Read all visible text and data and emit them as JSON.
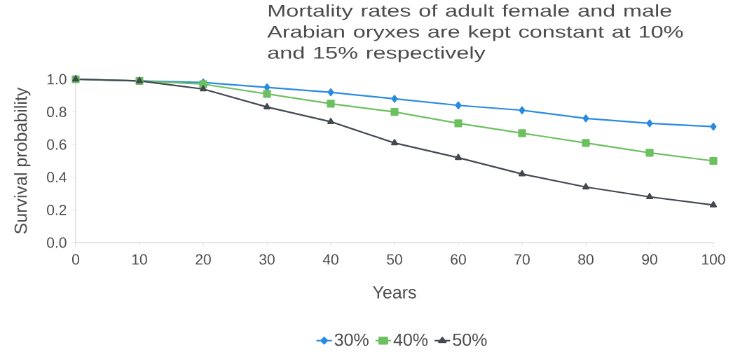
{
  "chart_data": {
    "type": "line",
    "title": "Mortality rates of adult female and male Arabian oryxes are kept constant at 10% and 15% respectively",
    "xlabel": "Years",
    "ylabel": "Survival probability",
    "x": [
      0,
      10,
      20,
      30,
      40,
      50,
      60,
      70,
      80,
      90,
      100
    ],
    "series": [
      {
        "name": "30%",
        "color": "#2a8ae0",
        "marker": "diamond",
        "values": [
          1.0,
          0.99,
          0.98,
          0.95,
          0.92,
          0.88,
          0.84,
          0.81,
          0.76,
          0.73,
          0.71
        ]
      },
      {
        "name": "40%",
        "color": "#6cc060",
        "marker": "square",
        "values": [
          1.0,
          0.99,
          0.97,
          0.91,
          0.85,
          0.8,
          0.73,
          0.67,
          0.61,
          0.55,
          0.5
        ]
      },
      {
        "name": "50%",
        "color": "#434851",
        "marker": "triangle",
        "values": [
          1.0,
          0.99,
          0.94,
          0.83,
          0.74,
          0.61,
          0.52,
          0.42,
          0.34,
          0.28,
          0.23
        ]
      }
    ],
    "xlim": [
      0,
      100
    ],
    "xticks": [
      0,
      10,
      20,
      30,
      40,
      50,
      60,
      70,
      80,
      90,
      100
    ],
    "ylim": [
      0,
      1.0
    ],
    "yticks": [
      {
        "value": 0,
        "label": "0.0"
      },
      {
        "value": 0.2,
        "label": "0.2"
      },
      {
        "value": 0.4,
        "label": "0.4"
      },
      {
        "value": 0.6,
        "label": "0.6"
      },
      {
        "value": 0.8,
        "label": "0.8"
      },
      {
        "value": 1.0,
        "label": "1.0"
      }
    ],
    "grid": false,
    "legend": "bottom",
    "line_style": "solid"
  }
}
